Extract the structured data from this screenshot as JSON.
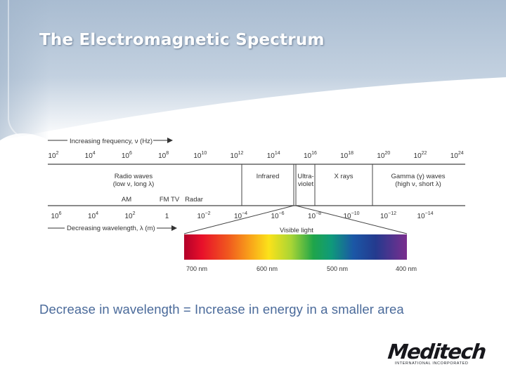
{
  "slide": {
    "title": "The Electromagnetic Spectrum",
    "caption": "Decrease in wavelength = Increase in energy in a smaller area"
  },
  "diagram": {
    "frequency_axis_label": "Increasing frequency, ν (Hz)",
    "wavelength_axis_label": "Decreasing wavelength, λ (m)",
    "frequency_ticks": [
      {
        "base": "10",
        "exp": "2"
      },
      {
        "base": "10",
        "exp": "4"
      },
      {
        "base": "10",
        "exp": "6"
      },
      {
        "base": "10",
        "exp": "8"
      },
      {
        "base": "10",
        "exp": "10"
      },
      {
        "base": "10",
        "exp": "12"
      },
      {
        "base": "10",
        "exp": "14"
      },
      {
        "base": "10",
        "exp": "16"
      },
      {
        "base": "10",
        "exp": "18"
      },
      {
        "base": "10",
        "exp": "20"
      },
      {
        "base": "10",
        "exp": "22"
      },
      {
        "base": "10",
        "exp": "24"
      }
    ],
    "wavelength_ticks": [
      {
        "base": "10",
        "exp": "6"
      },
      {
        "base": "10",
        "exp": "4"
      },
      {
        "base": "10",
        "exp": "2"
      },
      {
        "base": "1",
        "exp": ""
      },
      {
        "base": "10",
        "exp": "−2"
      },
      {
        "base": "10",
        "exp": "−4"
      },
      {
        "base": "10",
        "exp": "−6"
      },
      {
        "base": "10",
        "exp": "−8"
      },
      {
        "base": "10",
        "exp": "−10"
      },
      {
        "base": "10",
        "exp": "−12"
      },
      {
        "base": "10",
        "exp": "−14"
      }
    ],
    "regions": {
      "radio": [
        "Radio waves",
        "(low ν, long λ)"
      ],
      "infrared": [
        "Infrared"
      ],
      "ultraviolet": [
        "Ultra-",
        "violet"
      ],
      "xrays": [
        "X rays"
      ],
      "gamma": [
        "Gamma (γ) waves",
        "(high ν, short λ)"
      ]
    },
    "bands": {
      "am": "AM",
      "fmtv": "FM TV",
      "radar": "Radar"
    },
    "visible_light_label": "Visible light",
    "visible_ticks": [
      "700 nm",
      "600 nm",
      "500 nm",
      "400 nm"
    ]
  },
  "logo": {
    "name": "Meditech",
    "tagline": "INTERNATIONAL INCORPORATED"
  },
  "colors": {
    "banner_top": "#aec0d4",
    "banner_mid": "#c8d5e3",
    "caption": "#4a6a9a",
    "diagram_lines": "#444444"
  }
}
